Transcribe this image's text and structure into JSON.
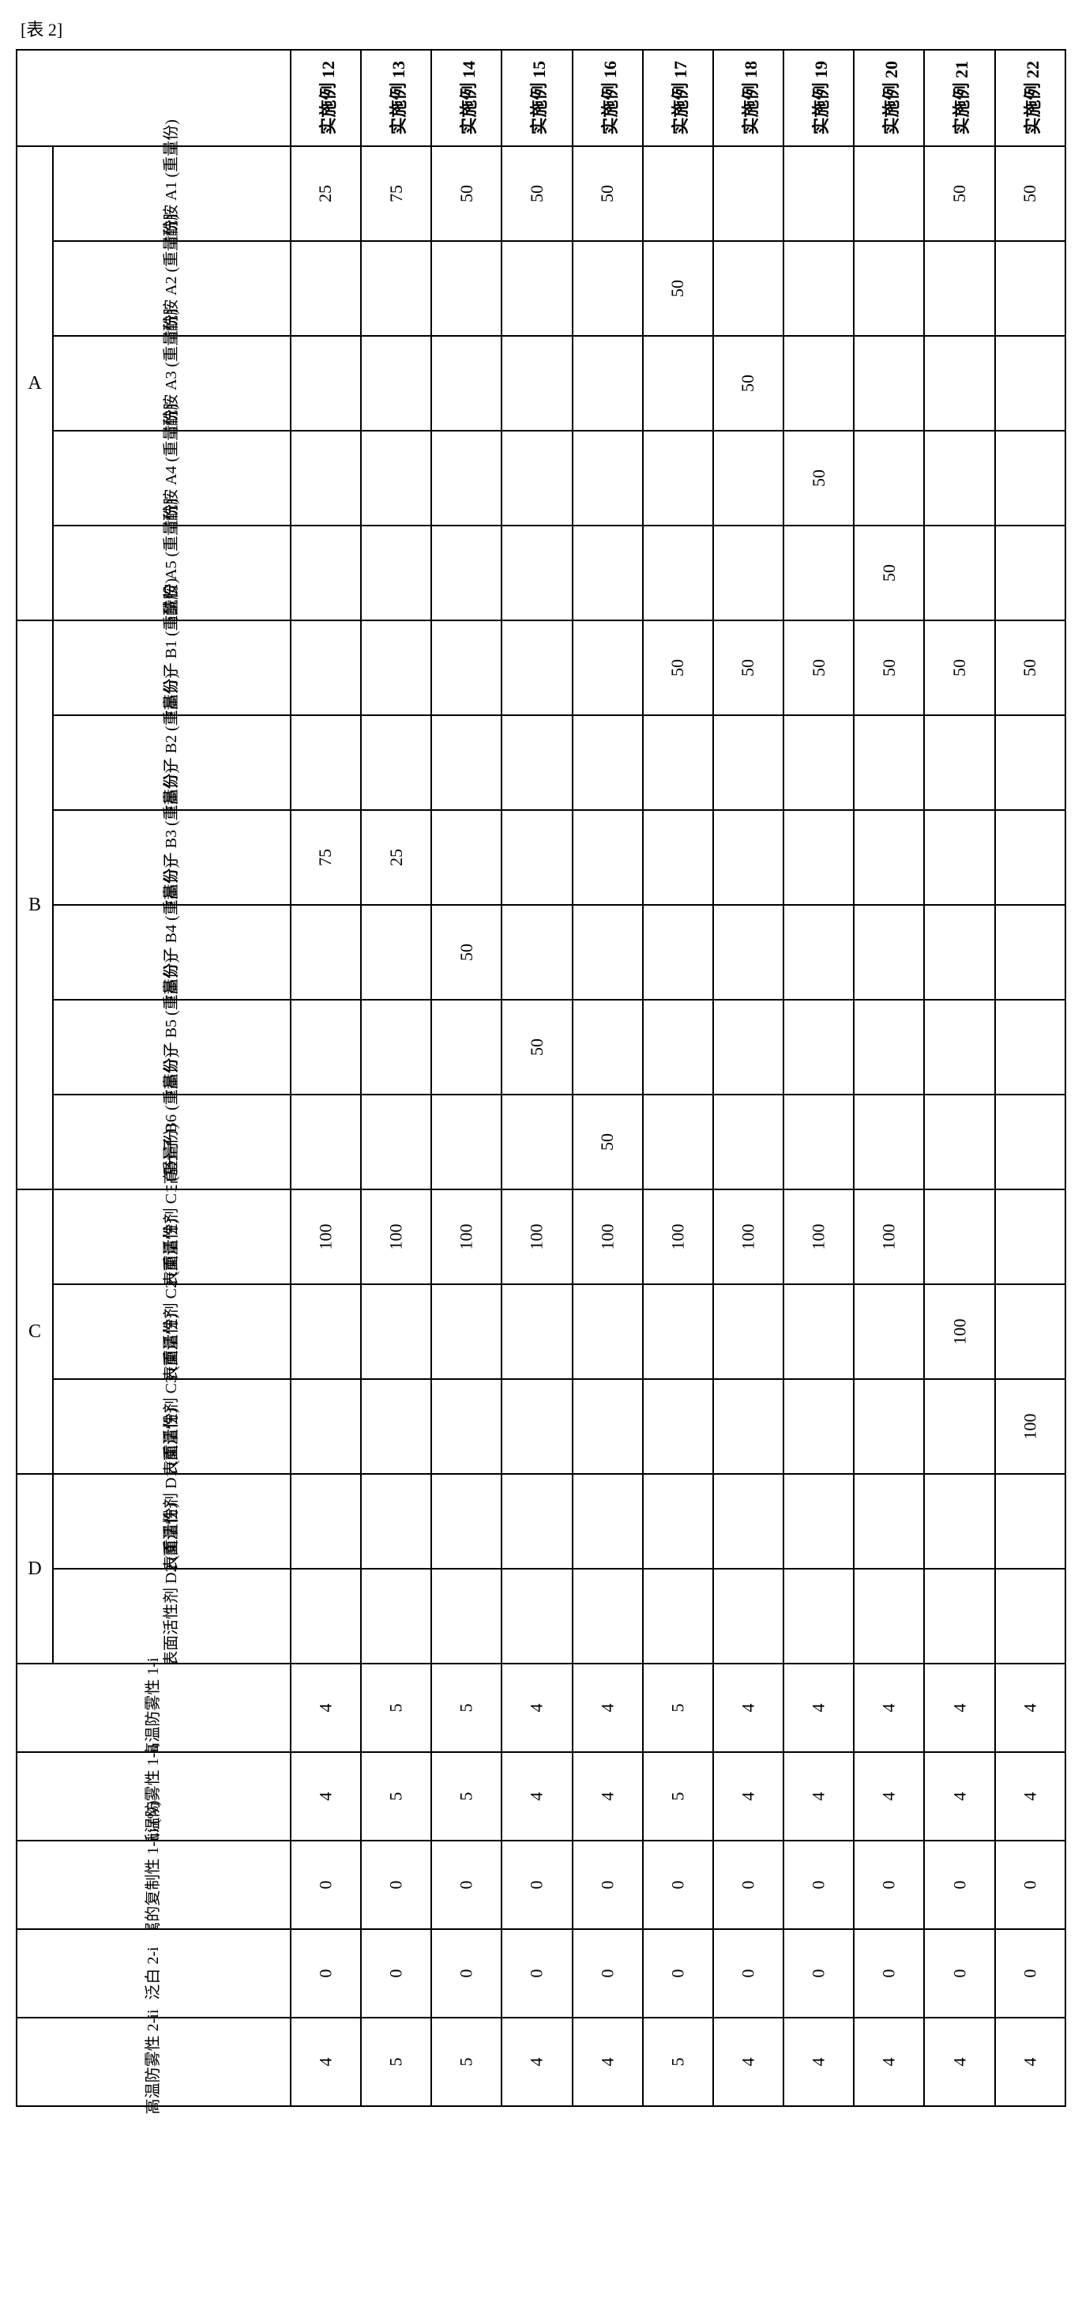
{
  "caption": "[表 2]",
  "header_prefix": "实施例",
  "columns": [
    "12",
    "13",
    "14",
    "15",
    "16",
    "17",
    "18",
    "19",
    "20",
    "21",
    "22"
  ],
  "groups": [
    {
      "id": "A",
      "rows": [
        "a1",
        "a2",
        "a3",
        "a4",
        "a5"
      ]
    },
    {
      "id": "B",
      "rows": [
        "b1",
        "b2",
        "b3",
        "b4",
        "b5",
        "b6"
      ]
    },
    {
      "id": "C",
      "rows": [
        "c1",
        "c2",
        "c3"
      ]
    },
    {
      "id": "D",
      "rows": [
        "d1",
        "d2"
      ]
    }
  ],
  "row_labels": {
    "a1": "脂肪酰胺 A1 (重量份)",
    "a2": "脂肪酰胺 A2 (重量份)",
    "a3": "脂肪酰胺 A3 (重量份)",
    "a4": "脂肪酰胺 A4 (重量份)",
    "a5": "脂肪酰胺 A5 (重量份)",
    "b1": "水溶性高分子 B1 (重量份)",
    "b2": "水溶性高分子 B2 (重量份)",
    "b3": "水溶性高分子 B3 (重量份)",
    "b4": "水溶性高分子 B4 (重量份)",
    "b5": "水溶性高分子 B5 (重量份)",
    "b6": "水溶性高分子 B6 (重量份)",
    "c1": "非离子性表面活性剂 C1 (重量份)",
    "c2": "非离子性表面活性剂 C2 (重量份)",
    "c3": "非离子性表面活性剂 C3 (重量份)",
    "d1": "阴离子性表面活性剂 D1 (重量份)",
    "d2": "阴离子性表面活性剂 D2 (重量份)"
  },
  "eval_rows": [
    "e1",
    "e2",
    "e3",
    "e4",
    "e5"
  ],
  "eval_labels": {
    "e1": "高温防雾性 1-i",
    "e2": "低温防雾性 1-ii",
    "e3": "对金属的复制性 1-iii (%)",
    "e4": "泛白 2-i",
    "e5": "高温防雾性 2-ii"
  },
  "data": {
    "a1": {
      "12": "25",
      "13": "75",
      "14": "50",
      "15": "50",
      "16": "50",
      "17": "",
      "18": "",
      "19": "",
      "20": "",
      "21": "50",
      "22": "50"
    },
    "a2": {
      "12": "",
      "13": "",
      "14": "",
      "15": "",
      "16": "",
      "17": "50",
      "18": "",
      "19": "",
      "20": "",
      "21": "",
      "22": ""
    },
    "a3": {
      "12": "",
      "13": "",
      "14": "",
      "15": "",
      "16": "",
      "17": "",
      "18": "50",
      "19": "",
      "20": "",
      "21": "",
      "22": ""
    },
    "a4": {
      "12": "",
      "13": "",
      "14": "",
      "15": "",
      "16": "",
      "17": "",
      "18": "",
      "19": "50",
      "20": "",
      "21": "",
      "22": ""
    },
    "a5": {
      "12": "",
      "13": "",
      "14": "",
      "15": "",
      "16": "",
      "17": "",
      "18": "",
      "19": "",
      "20": "50",
      "21": "",
      "22": ""
    },
    "b1": {
      "12": "",
      "13": "",
      "14": "",
      "15": "",
      "16": "",
      "17": "50",
      "18": "50",
      "19": "50",
      "20": "50",
      "21": "50",
      "22": "50"
    },
    "b2": {
      "12": "",
      "13": "",
      "14": "",
      "15": "",
      "16": "",
      "17": "",
      "18": "",
      "19": "",
      "20": "",
      "21": "",
      "22": ""
    },
    "b3": {
      "12": "75",
      "13": "25",
      "14": "",
      "15": "",
      "16": "",
      "17": "",
      "18": "",
      "19": "",
      "20": "",
      "21": "",
      "22": ""
    },
    "b4": {
      "12": "",
      "13": "",
      "14": "50",
      "15": "",
      "16": "",
      "17": "",
      "18": "",
      "19": "",
      "20": "",
      "21": "",
      "22": ""
    },
    "b5": {
      "12": "",
      "13": "",
      "14": "",
      "15": "50",
      "16": "",
      "17": "",
      "18": "",
      "19": "",
      "20": "",
      "21": "",
      "22": ""
    },
    "b6": {
      "12": "",
      "13": "",
      "14": "",
      "15": "",
      "16": "50",
      "17": "",
      "18": "",
      "19": "",
      "20": "",
      "21": "",
      "22": ""
    },
    "c1": {
      "12": "100",
      "13": "100",
      "14": "100",
      "15": "100",
      "16": "100",
      "17": "100",
      "18": "100",
      "19": "100",
      "20": "100",
      "21": "",
      "22": ""
    },
    "c2": {
      "12": "",
      "13": "",
      "14": "",
      "15": "",
      "16": "",
      "17": "",
      "18": "",
      "19": "",
      "20": "",
      "21": "100",
      "22": ""
    },
    "c3": {
      "12": "",
      "13": "",
      "14": "",
      "15": "",
      "16": "",
      "17": "",
      "18": "",
      "19": "",
      "20": "",
      "21": "",
      "22": "100"
    },
    "d1": {
      "12": "",
      "13": "",
      "14": "",
      "15": "",
      "16": "",
      "17": "",
      "18": "",
      "19": "",
      "20": "",
      "21": "",
      "22": ""
    },
    "d2": {
      "12": "",
      "13": "",
      "14": "",
      "15": "",
      "16": "",
      "17": "",
      "18": "",
      "19": "",
      "20": "",
      "21": "",
      "22": ""
    },
    "e1": {
      "12": "4",
      "13": "5",
      "14": "5",
      "15": "4",
      "16": "4",
      "17": "5",
      "18": "4",
      "19": "4",
      "20": "4",
      "21": "4",
      "22": "4"
    },
    "e2": {
      "12": "4",
      "13": "5",
      "14": "5",
      "15": "4",
      "16": "4",
      "17": "5",
      "18": "4",
      "19": "4",
      "20": "4",
      "21": "4",
      "22": "4"
    },
    "e3": {
      "12": "0",
      "13": "0",
      "14": "0",
      "15": "0",
      "16": "0",
      "17": "0",
      "18": "0",
      "19": "0",
      "20": "0",
      "21": "0",
      "22": "0"
    },
    "e4": {
      "12": "0",
      "13": "0",
      "14": "0",
      "15": "0",
      "16": "0",
      "17": "0",
      "18": "0",
      "19": "0",
      "20": "0",
      "21": "0",
      "22": "0"
    },
    "e5": {
      "12": "4",
      "13": "5",
      "14": "5",
      "15": "4",
      "16": "4",
      "17": "5",
      "18": "4",
      "19": "4",
      "20": "4",
      "21": "4",
      "22": "4"
    }
  }
}
